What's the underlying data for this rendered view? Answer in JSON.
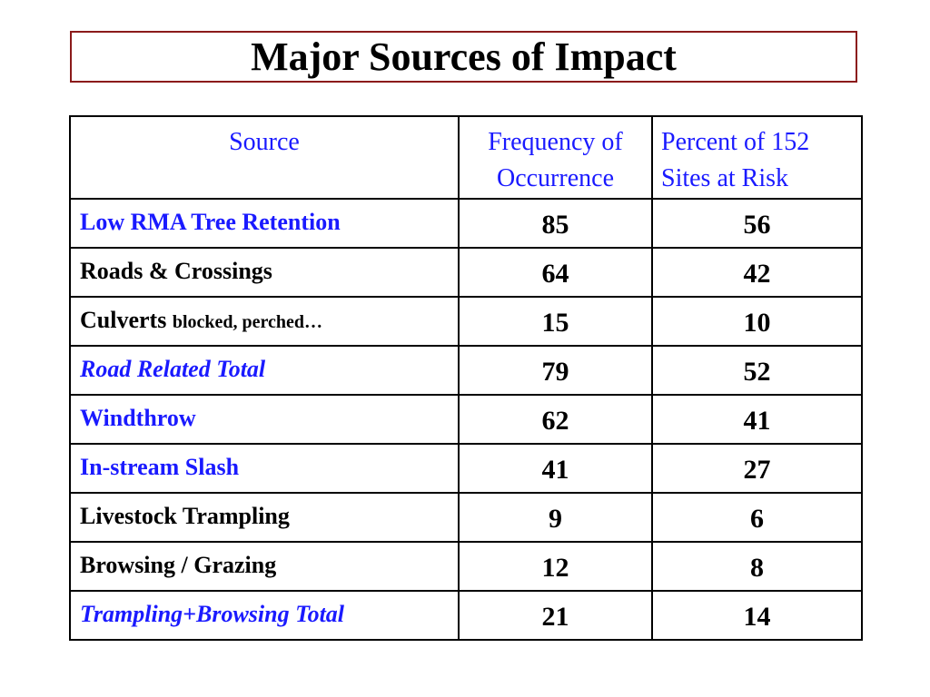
{
  "title": "Major Sources of Impact",
  "table": {
    "headers": [
      {
        "line1": "Source",
        "line2": ""
      },
      {
        "line1": "Frequency of",
        "line2": "Occurrence"
      },
      {
        "line1": "Percent of 152",
        "line2": "Sites at Risk"
      }
    ],
    "rows": [
      {
        "source": "Low RMA Tree Retention",
        "source_sub": "",
        "frequency": "85",
        "percent": "56"
      },
      {
        "source": "Roads & Crossings",
        "source_sub": "",
        "frequency": "64",
        "percent": "42"
      },
      {
        "source": "Culverts ",
        "source_sub": "blocked, perched…",
        "frequency": "15",
        "percent": "10"
      },
      {
        "source": "Road Related Total",
        "source_sub": "",
        "frequency": "79",
        "percent": "52"
      },
      {
        "source": "Windthrow",
        "source_sub": "",
        "frequency": "62",
        "percent": "41"
      },
      {
        "source": "In-stream Slash",
        "source_sub": "",
        "frequency": "41",
        "percent": "27"
      },
      {
        "source": "Livestock Trampling",
        "source_sub": "",
        "frequency": "9",
        "percent": "6"
      },
      {
        "source": "Browsing / Grazing",
        "source_sub": "",
        "frequency": "12",
        "percent": "8"
      },
      {
        "source": "Trampling+Browsing Total",
        "source_sub": "",
        "frequency": "21",
        "percent": "14"
      }
    ]
  },
  "colors": {
    "header_text": "#1a1aff",
    "highlight_text": "#1a1aff",
    "title_border": "#8b1a1a"
  }
}
